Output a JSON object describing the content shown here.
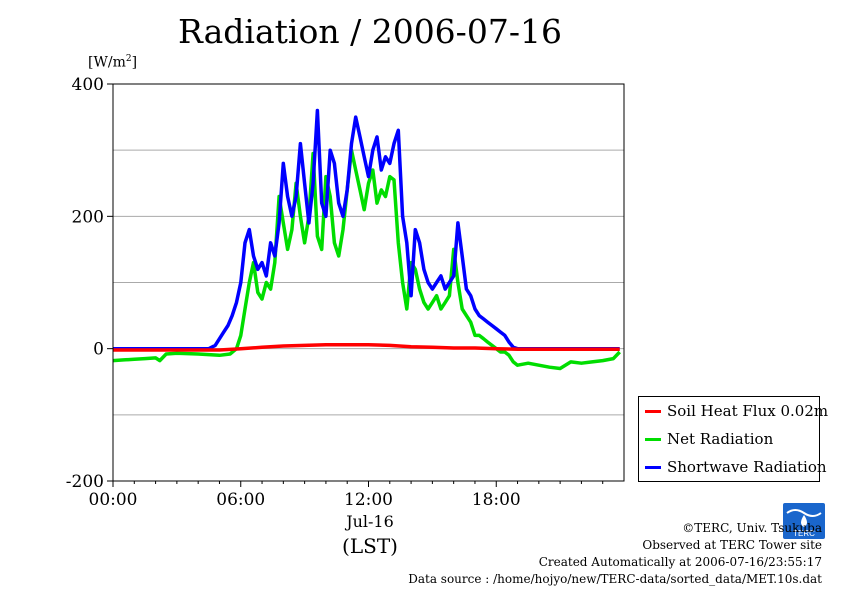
{
  "title": "Radiation / 2006-07-16",
  "unit_prefix": "[W/m",
  "unit_sup": "2",
  "unit_suffix": "]",
  "date_label": "Jul-16",
  "x_unit": "(LST)",
  "footer": {
    "copyright": "©TERC, Univ. Tsukuba",
    "site": "Observed at TERC Tower site",
    "created": "Created Automatically at 2006-07-16/23:55:17",
    "source": "Data source : /home/hojyo/new/TERC-data/sorted_data/MET.10s.dat"
  },
  "logo_text": "TERC",
  "chart_data": {
    "type": "line",
    "title": "Radiation / 2006-07-16",
    "ylabel": "[W/m2]",
    "xlabel": "(LST)",
    "xlim": [
      0,
      24
    ],
    "ylim": [
      -200,
      400
    ],
    "x_ticks": [
      {
        "value": 0,
        "label": "00:00"
      },
      {
        "value": 6,
        "label": "06:00"
      },
      {
        "value": 12,
        "label": "12:00"
      },
      {
        "value": 18,
        "label": "18:00"
      }
    ],
    "y_ticks": [
      {
        "value": -200,
        "label": "-200"
      },
      {
        "value": 0,
        "label": "0"
      },
      {
        "value": 200,
        "label": "200"
      },
      {
        "value": 400,
        "label": "400"
      }
    ],
    "y_gridlines": [
      -100,
      0,
      100,
      200,
      300
    ],
    "legend_position": "bottom-right",
    "series": [
      {
        "name": "Soil Heat Flux 0.02m",
        "color": "#ff0000",
        "x": [
          0,
          3,
          5,
          6,
          7,
          8,
          9,
          10,
          11,
          12,
          13,
          14,
          15,
          16,
          17,
          18,
          19,
          21,
          23,
          23.8
        ],
        "y": [
          -2,
          -2,
          -2,
          0,
          2,
          4,
          5,
          6,
          6,
          6,
          5,
          3,
          2,
          1,
          1,
          0,
          -1,
          -1,
          -1,
          -1
        ]
      },
      {
        "name": "Net Radiation",
        "color": "#00dd00",
        "x": [
          0,
          0.5,
          1,
          1.5,
          2,
          2.2,
          2.5,
          3,
          4,
          4.5,
          5,
          5.5,
          5.8,
          6,
          6.2,
          6.4,
          6.6,
          6.8,
          7,
          7.2,
          7.4,
          7.6,
          7.8,
          8,
          8.2,
          8.4,
          8.6,
          8.8,
          9,
          9.2,
          9.4,
          9.6,
          9.8,
          10,
          10.2,
          10.4,
          10.6,
          10.8,
          11,
          11.2,
          11.4,
          11.6,
          11.8,
          12,
          12.2,
          12.4,
          12.6,
          12.8,
          13,
          13.2,
          13.4,
          13.6,
          13.8,
          14,
          14.2,
          14.4,
          14.6,
          14.8,
          15,
          15.2,
          15.4,
          15.6,
          15.8,
          16,
          16.2,
          16.4,
          16.6,
          16.8,
          17,
          17.2,
          17.4,
          17.6,
          17.8,
          18,
          18.2,
          18.4,
          18.6,
          18.8,
          19,
          19.5,
          20,
          20.5,
          21,
          21.5,
          22,
          22.5,
          23,
          23.5,
          23.8
        ],
        "y": [
          -18,
          -17,
          -16,
          -15,
          -14,
          -18,
          -8,
          -7,
          -8,
          -9,
          -10,
          -8,
          0,
          20,
          60,
          100,
          130,
          85,
          75,
          100,
          90,
          130,
          230,
          190,
          150,
          180,
          250,
          200,
          160,
          200,
          295,
          170,
          150,
          260,
          230,
          160,
          140,
          180,
          240,
          300,
          270,
          240,
          210,
          250,
          270,
          220,
          240,
          230,
          260,
          255,
          160,
          100,
          60,
          130,
          120,
          90,
          70,
          60,
          70,
          80,
          60,
          70,
          80,
          150,
          100,
          60,
          50,
          40,
          20,
          20,
          15,
          10,
          5,
          0,
          -5,
          -5,
          -10,
          -20,
          -25,
          -22,
          -25,
          -28,
          -30,
          -20,
          -22,
          -20,
          -18,
          -15,
          -5
        ]
      },
      {
        "name": "Shortwave Radiation",
        "color": "#0000ff",
        "x": [
          0,
          1,
          2,
          3,
          4,
          4.5,
          4.8,
          5,
          5.2,
          5.4,
          5.6,
          5.8,
          6,
          6.2,
          6.4,
          6.6,
          6.8,
          7,
          7.2,
          7.4,
          7.6,
          7.8,
          8,
          8.2,
          8.4,
          8.6,
          8.8,
          9,
          9.2,
          9.4,
          9.6,
          9.8,
          10,
          10.2,
          10.4,
          10.6,
          10.8,
          11,
          11.2,
          11.4,
          11.6,
          11.8,
          12,
          12.2,
          12.4,
          12.6,
          12.8,
          13,
          13.2,
          13.4,
          13.6,
          13.8,
          14,
          14.2,
          14.4,
          14.6,
          14.8,
          15,
          15.2,
          15.4,
          15.6,
          15.8,
          16,
          16.2,
          16.4,
          16.6,
          16.8,
          17,
          17.2,
          17.4,
          17.6,
          17.8,
          18,
          18.2,
          18.4,
          18.6,
          18.8,
          19,
          20,
          21,
          22,
          23,
          23.8
        ],
        "y": [
          0,
          0,
          0,
          0,
          0,
          0,
          5,
          15,
          25,
          35,
          50,
          70,
          100,
          160,
          180,
          140,
          120,
          130,
          110,
          160,
          140,
          190,
          280,
          230,
          200,
          230,
          310,
          250,
          190,
          250,
          360,
          220,
          200,
          300,
          280,
          220,
          200,
          240,
          310,
          350,
          320,
          290,
          260,
          300,
          320,
          270,
          290,
          280,
          310,
          330,
          200,
          160,
          80,
          180,
          160,
          120,
          100,
          90,
          100,
          110,
          90,
          100,
          110,
          190,
          140,
          90,
          80,
          60,
          50,
          45,
          40,
          35,
          30,
          25,
          20,
          10,
          2,
          0,
          0,
          0,
          0,
          0,
          0
        ]
      }
    ]
  }
}
